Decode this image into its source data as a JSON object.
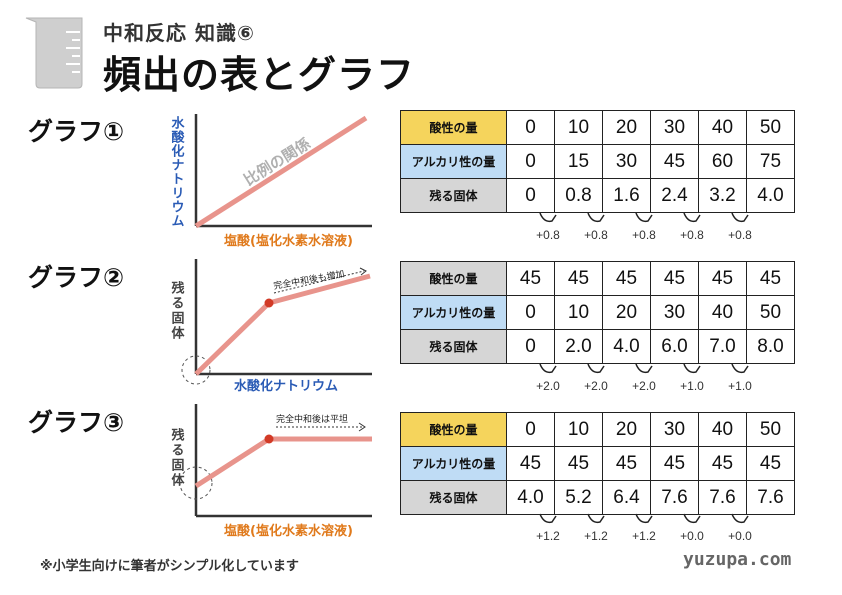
{
  "header": {
    "super_title": "中和反応 知識⑥",
    "title": "頻出の表とグラフ"
  },
  "graph1": {
    "label": "グラフ①",
    "y_axis": "水酸化ナトリウム",
    "x_axis": "塩酸(塩化水素水溶液)",
    "annotation": "比例の関係",
    "table": {
      "rows": [
        {
          "header": "酸性の量",
          "values": [
            "0",
            "10",
            "20",
            "30",
            "40",
            "50"
          ]
        },
        {
          "header": "アルカリ性の量",
          "values": [
            "0",
            "15",
            "30",
            "45",
            "60",
            "75"
          ]
        },
        {
          "header": "残る固体",
          "values": [
            "0",
            "0.8",
            "1.6",
            "2.4",
            "3.2",
            "4.0"
          ]
        }
      ],
      "increments": [
        "+0.8",
        "+0.8",
        "+0.8",
        "+0.8",
        "+0.8"
      ]
    }
  },
  "graph2": {
    "label": "グラフ②",
    "y_axis": "残る固体",
    "x_axis": "水酸化ナトリウム",
    "annotation": "完全中和後も増加",
    "table": {
      "rows": [
        {
          "header": "酸性の量",
          "values": [
            "45",
            "45",
            "45",
            "45",
            "45",
            "45"
          ]
        },
        {
          "header": "アルカリ性の量",
          "values": [
            "0",
            "10",
            "20",
            "30",
            "40",
            "50"
          ]
        },
        {
          "header": "残る固体",
          "values": [
            "0",
            "2.0",
            "4.0",
            "6.0",
            "7.0",
            "8.0"
          ]
        }
      ],
      "increments": [
        "+2.0",
        "+2.0",
        "+2.0",
        "+1.0",
        "+1.0"
      ]
    }
  },
  "graph3": {
    "label": "グラフ③",
    "y_axis": "残る固体",
    "x_axis": "塩酸(塩化水素水溶液)",
    "annotation": "完全中和後は平坦",
    "table": {
      "rows": [
        {
          "header": "酸性の量",
          "values": [
            "0",
            "10",
            "20",
            "30",
            "40",
            "50"
          ]
        },
        {
          "header": "アルカリ性の量",
          "values": [
            "45",
            "45",
            "45",
            "45",
            "45",
            "45"
          ]
        },
        {
          "header": "残る固体",
          "values": [
            "4.0",
            "5.2",
            "6.4",
            "7.6",
            "7.6",
            "7.6"
          ]
        }
      ],
      "increments": [
        "+1.2",
        "+1.2",
        "+1.2",
        "+0.0",
        "+0.0"
      ]
    }
  },
  "footer": {
    "note": "※小学生向けに筆者がシンプル化しています",
    "site": "yuzupa.com"
  },
  "colors": {
    "line": "#e8948c",
    "dot": "#d23a26",
    "axis_blue": "#2a5bb5",
    "axis_orange": "#e07a1c",
    "acid": "#f5d45c",
    "alkali": "#bfdcf5",
    "solid": "#d6d6d6"
  }
}
